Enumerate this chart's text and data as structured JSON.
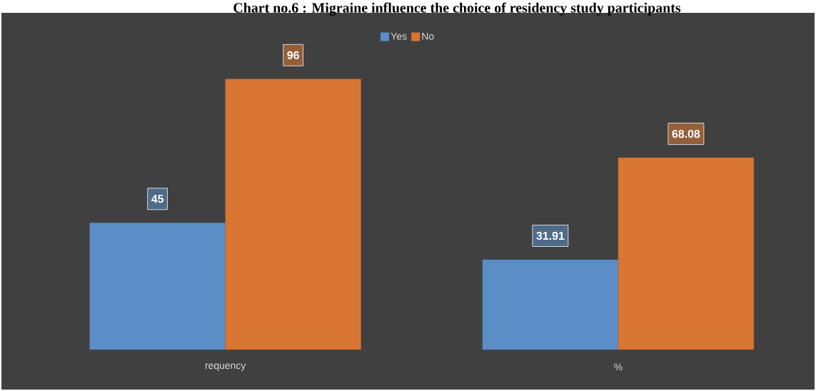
{
  "chart_data": {
    "type": "bar",
    "title": "Chart no.6 : Migraine influence the choice of residency study participants",
    "categories": [
      "requency",
      "%"
    ],
    "series": [
      {
        "name": "Yes",
        "color": "#5b8ec7",
        "values": [
          45,
          31.91
        ]
      },
      {
        "name": "No",
        "color": "#d97634",
        "values": [
          96,
          68.08
        ]
      }
    ],
    "data_labels": true,
    "legend": "top"
  }
}
